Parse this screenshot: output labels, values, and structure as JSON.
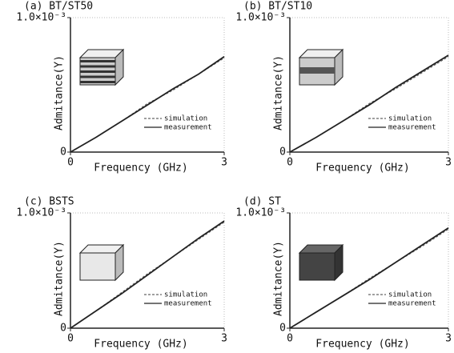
{
  "chart_data": [
    {
      "type": "line",
      "title": "(a) BT/ST50",
      "x_label": "Frequency (GHz)",
      "y_label": "Admitance(Y)",
      "x": [
        0,
        0.5,
        1,
        1.5,
        2,
        2.5,
        3
      ],
      "xlim": [
        0,
        3
      ],
      "xticks": [
        0,
        3
      ],
      "ylim": [
        0,
        0.001
      ],
      "yticks": [
        0,
        {
          "value": 0.001,
          "label": "1.0×10⁻³"
        }
      ],
      "series": [
        {
          "name": "simulation",
          "color": "#666666",
          "line_style": "dashed",
          "values": [
            0,
            0.00011,
            0.00023,
            0.00036,
            0.00046,
            0.00058,
            0.0007
          ]
        },
        {
          "name": "measurement",
          "color": "#222222",
          "line_style": "solid",
          "values": [
            0,
            0.00011,
            0.00023,
            0.00035,
            0.00047,
            0.00058,
            0.00071
          ]
        }
      ]
    },
    {
      "type": "line",
      "title": "(b) BT/ST10",
      "x_label": "Frequency (GHz)",
      "y_label": "Admitance(Y)",
      "x": [
        0,
        0.5,
        1,
        1.5,
        2,
        2.5,
        3
      ],
      "xlim": [
        0,
        3
      ],
      "xticks": [
        0,
        3
      ],
      "ylim": [
        0,
        0.001
      ],
      "yticks": [
        0,
        {
          "value": 0.001,
          "label": "1.0×10⁻³"
        }
      ],
      "series": [
        {
          "name": "simulation",
          "color": "#666666",
          "line_style": "dashed",
          "values": [
            0,
            0.00011,
            0.00023,
            0.00036,
            0.00047,
            0.00059,
            0.00071
          ]
        },
        {
          "name": "measurement",
          "color": "#222222",
          "line_style": "solid",
          "values": [
            0,
            0.00011,
            0.00023,
            0.00035,
            0.00048,
            0.0006,
            0.00072
          ]
        }
      ]
    },
    {
      "type": "line",
      "title": "(c) BSTS",
      "x_label": "Frequency (GHz)",
      "y_label": "Admitance(Y)",
      "x": [
        0,
        0.5,
        1,
        1.5,
        2,
        2.5,
        3
      ],
      "xlim": [
        0,
        3
      ],
      "xticks": [
        0,
        3
      ],
      "ylim": [
        0,
        0.001
      ],
      "yticks": [
        0,
        {
          "value": 0.001,
          "label": "1.0×10⁻³"
        }
      ],
      "series": [
        {
          "name": "simulation",
          "color": "#666666",
          "line_style": "dashed",
          "values": [
            0,
            0.00015,
            0.00031,
            0.00047,
            0.00062,
            0.00077,
            0.00092
          ]
        },
        {
          "name": "measurement",
          "color": "#222222",
          "line_style": "solid",
          "values": [
            0,
            0.00015,
            0.0003,
            0.00046,
            0.00062,
            0.00078,
            0.00093
          ]
        }
      ]
    },
    {
      "type": "line",
      "title": "(d) ST",
      "x_label": "Frequency (GHz)",
      "y_label": "Admitance(Y)",
      "x": [
        0,
        0.5,
        1,
        1.5,
        2,
        2.5,
        3
      ],
      "xlim": [
        0,
        3
      ],
      "xticks": [
        0,
        3
      ],
      "ylim": [
        0,
        0.001
      ],
      "yticks": [
        0,
        {
          "value": 0.001,
          "label": "1.0×10⁻³"
        }
      ],
      "series": [
        {
          "name": "simulation",
          "color": "#666666",
          "line_style": "dashed",
          "values": [
            0,
            0.00014,
            0.00028,
            0.00043,
            0.00057,
            0.00071,
            0.00086
          ]
        },
        {
          "name": "measurement",
          "color": "#222222",
          "line_style": "solid",
          "values": [
            0,
            0.00014,
            0.00028,
            0.00042,
            0.00057,
            0.00072,
            0.00087
          ]
        }
      ]
    }
  ]
}
